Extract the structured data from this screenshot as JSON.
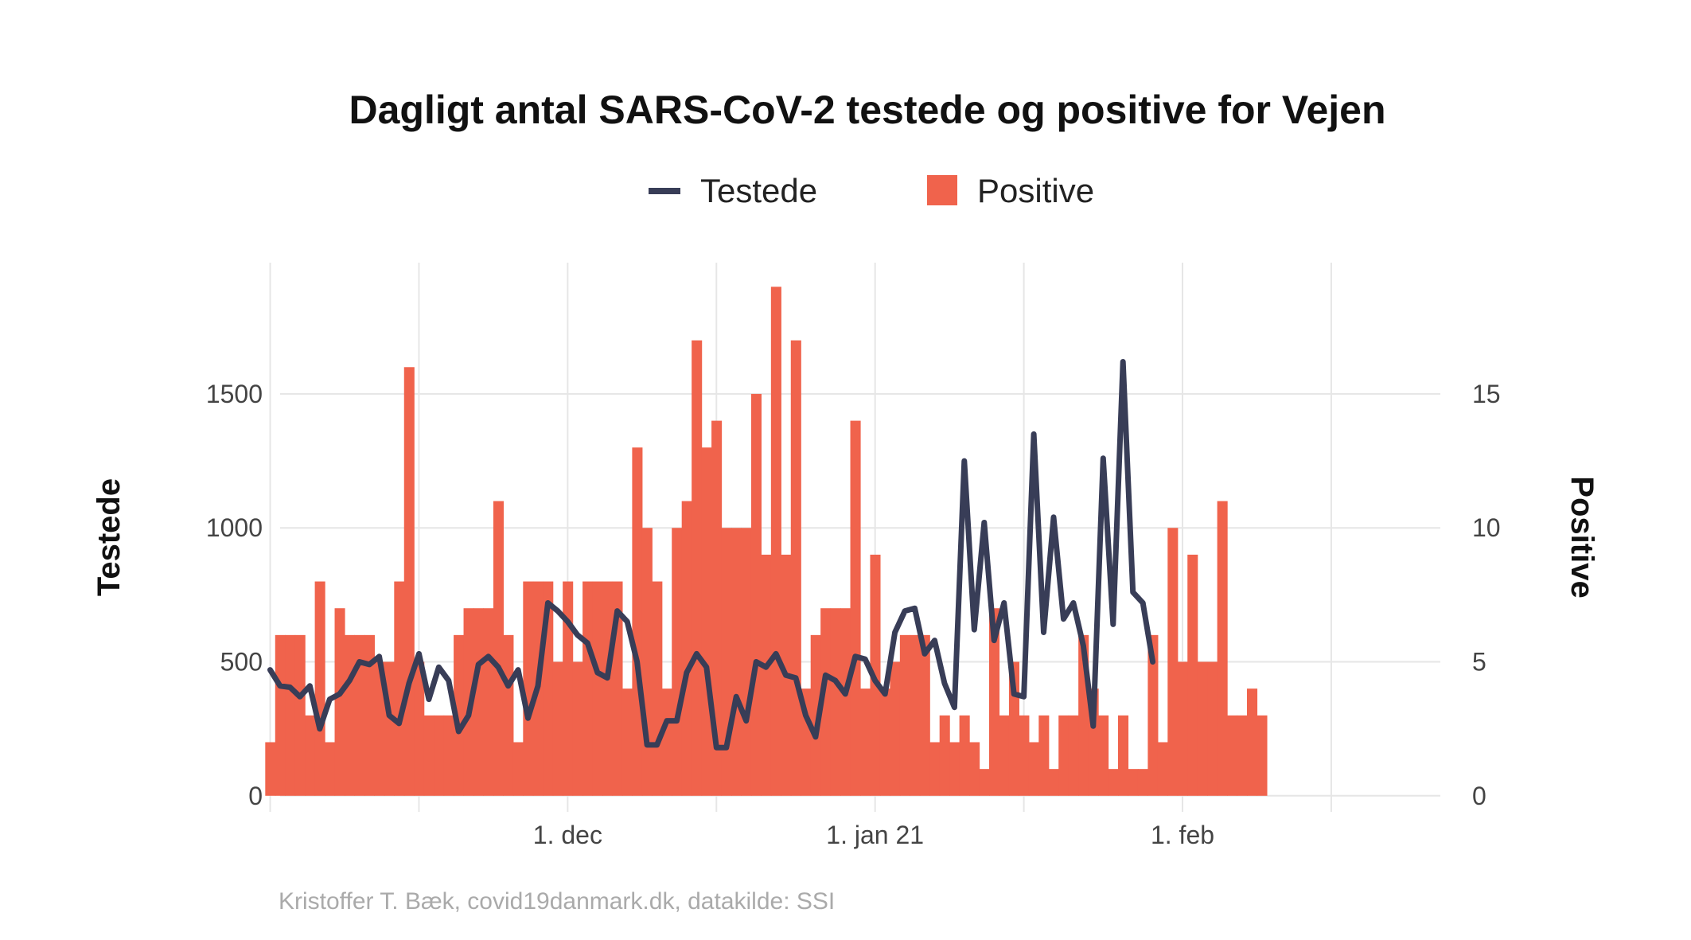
{
  "chart_data": {
    "type": "bar+line",
    "title": "Dagligt antal SARS-CoV-2 testede og positive for Vejen",
    "caption": "Kristoffer T. Bæk, covid19danmark.dk, datakilde: SSI",
    "legend": {
      "placement": "top",
      "items": [
        {
          "label": "Testede",
          "kind": "line",
          "color": "#383d57"
        },
        {
          "label": "Positive",
          "kind": "bar",
          "color": "#f0634c"
        }
      ]
    },
    "x_axis": {
      "type": "date",
      "start": "2020-11-02",
      "end": "2021-02-27",
      "tick_labels": [
        {
          "date": "2020-12-01",
          "label": "1. dec"
        },
        {
          "date": "2021-01-01",
          "label": "1. jan 21"
        },
        {
          "date": "2021-02-01",
          "label": "1. feb"
        }
      ],
      "minor_gridlines": [
        "2020-11-16",
        "2020-12-16",
        "2021-01-16",
        "2021-02-16"
      ]
    },
    "y_left": {
      "label": "Testede",
      "range": [
        -60,
        1990
      ],
      "ticks": [
        {
          "value": 0,
          "label": "0"
        },
        {
          "value": 500,
          "label": "500"
        },
        {
          "value": 1000,
          "label": "1000"
        },
        {
          "value": 1500,
          "label": "1500"
        }
      ]
    },
    "y_right": {
      "label": "Positive",
      "range": [
        -0.6,
        19.9
      ],
      "ticks": [
        {
          "value": 0,
          "label": "0"
        },
        {
          "value": 5,
          "label": "5"
        },
        {
          "value": 10,
          "label": "10"
        },
        {
          "value": 15,
          "label": "15"
        }
      ]
    },
    "series": [
      {
        "name": "Positive",
        "kind": "bar",
        "axis": "right",
        "color": "#f0634c",
        "start_date": "2020-11-01",
        "values": [
          2,
          6,
          6,
          6,
          3,
          8,
          2,
          7,
          6,
          6,
          6,
          5,
          5,
          8,
          16,
          5,
          3,
          3,
          3,
          6,
          7,
          7,
          7,
          11,
          6,
          2,
          8,
          8,
          8,
          5,
          8,
          5,
          8,
          8,
          8,
          8,
          4,
          13,
          10,
          8,
          4,
          10,
          11,
          17,
          13,
          14,
          10,
          10,
          10,
          15,
          9,
          19,
          9,
          17,
          4,
          6,
          7,
          7,
          7,
          14,
          4,
          9,
          4,
          5,
          6,
          6,
          6,
          2,
          3,
          2,
          3,
          2,
          1,
          7,
          3,
          5,
          3,
          2,
          3,
          1,
          3,
          3,
          6,
          4,
          3,
          1,
          3,
          1,
          1,
          6,
          2,
          10,
          5,
          9,
          5,
          5,
          11,
          3,
          3,
          4,
          3
        ]
      },
      {
        "name": "Testede",
        "kind": "line",
        "axis": "left",
        "color": "#383d57",
        "start_date": "2020-11-01",
        "values": [
          470,
          410,
          405,
          370,
          410,
          250,
          360,
          380,
          430,
          500,
          490,
          520,
          300,
          270,
          420,
          530,
          360,
          480,
          430,
          240,
          300,
          490,
          520,
          480,
          410,
          470,
          290,
          410,
          720,
          690,
          650,
          600,
          570,
          460,
          440,
          690,
          650,
          500,
          190,
          190,
          280,
          280,
          460,
          530,
          480,
          180,
          180,
          370,
          280,
          500,
          480,
          530,
          450,
          440,
          300,
          220,
          450,
          430,
          380,
          520,
          510,
          430,
          380,
          610,
          690,
          700,
          530,
          580,
          420,
          330,
          1250,
          620,
          1020,
          580,
          720,
          380,
          370,
          1350,
          610,
          1040,
          660,
          720,
          560,
          260,
          1260,
          640,
          1620,
          760,
          720,
          500
        ]
      }
    ]
  }
}
